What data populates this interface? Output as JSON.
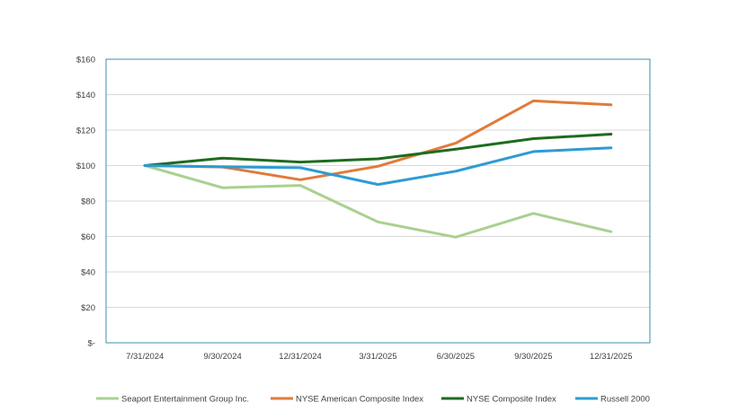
{
  "chart_data": {
    "type": "line",
    "title": "",
    "xlabel": "",
    "ylabel": "",
    "categories": [
      "7/31/2024",
      "9/30/2024",
      "12/31/2024",
      "3/31/2025",
      "6/30/2025",
      "9/30/2025",
      "12/31/2025"
    ],
    "ylim": [
      0,
      160
    ],
    "yticks": [
      0,
      20,
      40,
      60,
      80,
      100,
      120,
      140,
      160
    ],
    "ytick_labels": [
      "$-",
      "$20",
      "$40",
      "$60",
      "$80",
      "$100",
      "$120",
      "$140",
      "$160"
    ],
    "grid": true,
    "legend_position": "bottom",
    "series": [
      {
        "name": "Seaport Entertainment Group Inc.",
        "color": "#a9d18e",
        "values": [
          100,
          87.5,
          88.8,
          68.2,
          59.6,
          73.0,
          62.7
        ]
      },
      {
        "name": "NYSE American Composite Index",
        "color": "#e07b39",
        "values": [
          100,
          99.2,
          92.0,
          99.6,
          112.6,
          136.5,
          134.3
        ]
      },
      {
        "name": "NYSE Composite Index",
        "color": "#1e6b1e",
        "values": [
          100,
          104.2,
          102.0,
          103.8,
          109.2,
          115.2,
          117.7
        ]
      },
      {
        "name": "Russell 2000",
        "color": "#2e9bd3",
        "values": [
          100,
          99.3,
          98.8,
          89.3,
          96.8,
          107.9,
          110.0
        ]
      }
    ]
  }
}
